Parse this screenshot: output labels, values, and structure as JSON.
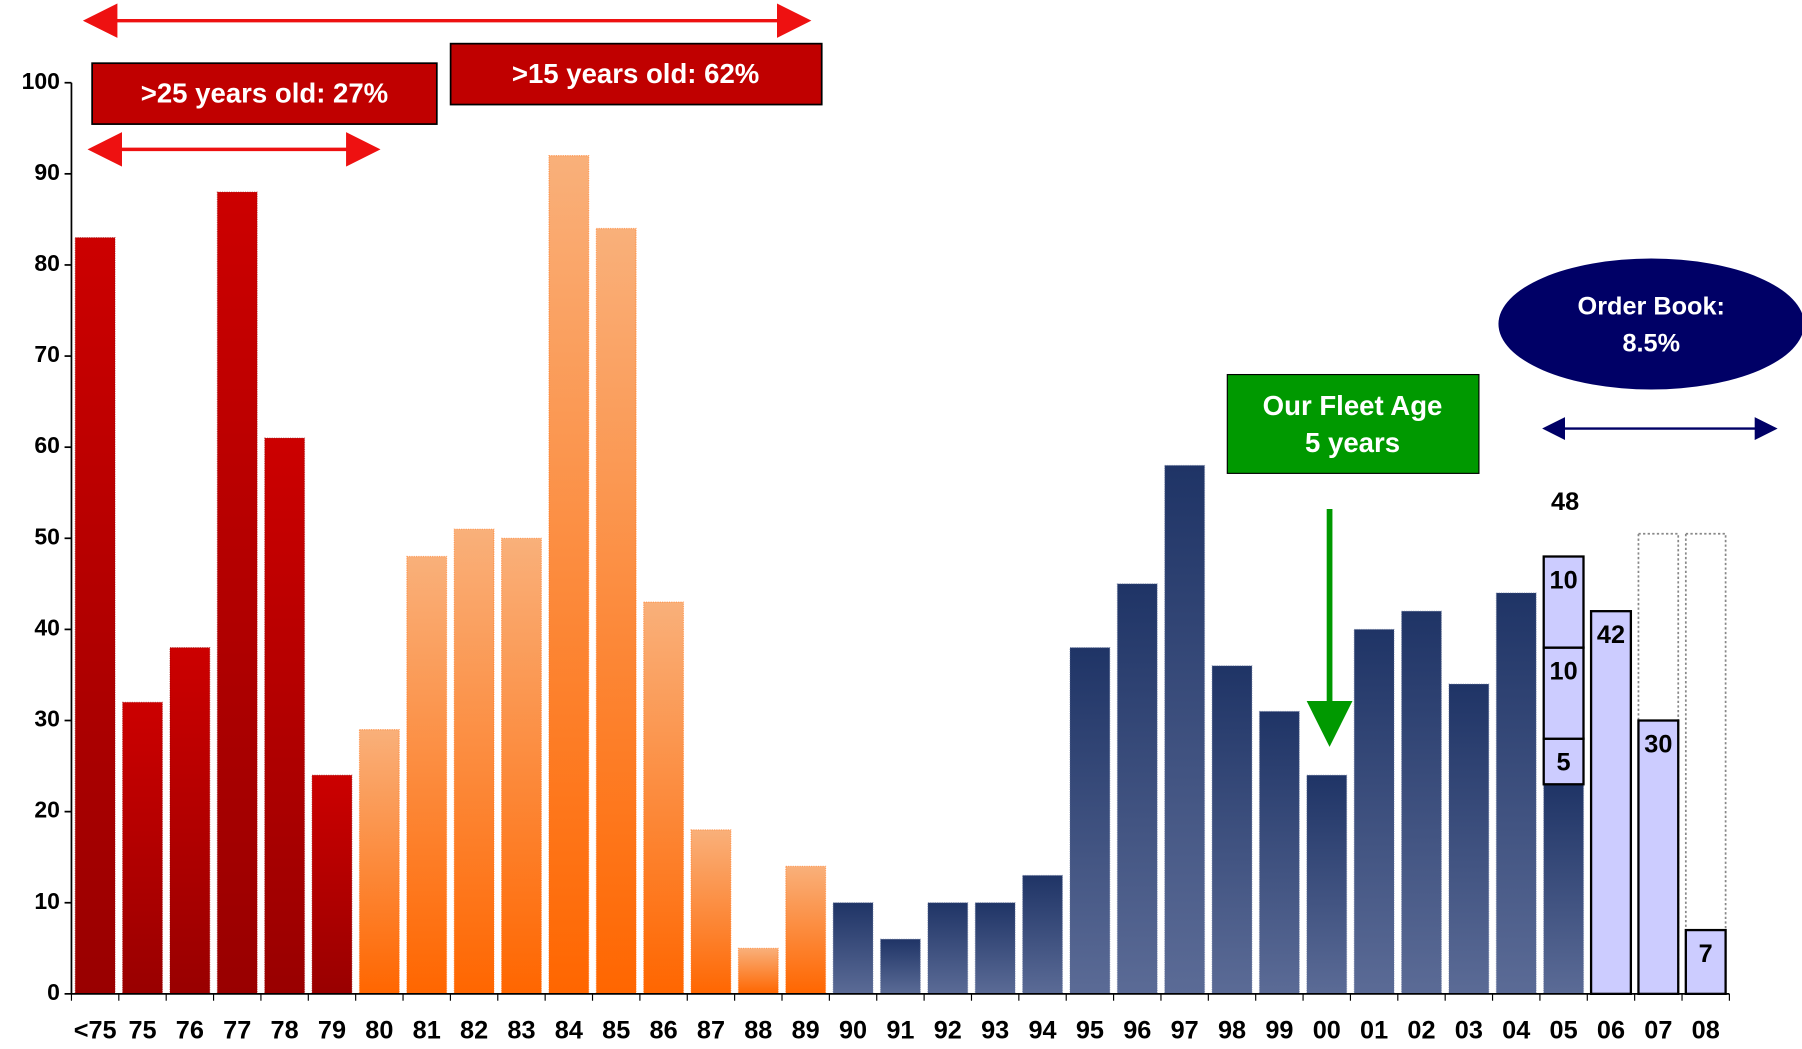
{
  "chart_data": {
    "type": "bar",
    "categories": [
      "<75",
      "75",
      "76",
      "77",
      "78",
      "79",
      "80",
      "81",
      "82",
      "83",
      "84",
      "85",
      "86",
      "87",
      "88",
      "89",
      "90",
      "91",
      "92",
      "93",
      "94",
      "95",
      "96",
      "97",
      "98",
      "99",
      "00",
      "01",
      "02",
      "03",
      "04",
      "05",
      "06",
      "07",
      "08"
    ],
    "series": [
      {
        "color": "#ffffff",
        "color2": "#ffffff",
        "overlay": true,
        "dashed": true,
        "values": [
          null,
          null,
          null,
          null,
          null,
          null,
          null,
          null,
          null,
          null,
          null,
          null,
          null,
          null,
          null,
          null,
          null,
          null,
          null,
          null,
          null,
          null,
          null,
          null,
          null,
          null,
          null,
          null,
          null,
          null,
          null,
          null,
          null,
          50.5,
          50.5
        ]
      },
      {
        "color": "#cc0000",
        "color2": "#990000",
        "values": [
          83,
          32,
          38,
          88,
          61,
          24,
          null,
          null,
          null,
          null,
          null,
          null,
          null,
          null,
          null,
          null,
          null,
          null,
          null,
          null,
          null,
          null,
          null,
          null,
          null,
          null,
          null,
          null,
          null,
          null,
          null,
          null,
          null,
          null,
          null
        ]
      },
      {
        "color": "#f9b07a",
        "color2": "#ff6600",
        "values": [
          null,
          null,
          null,
          null,
          null,
          null,
          29,
          48,
          51,
          50,
          92,
          84,
          43,
          18,
          5,
          14,
          null,
          null,
          null,
          null,
          null,
          null,
          null,
          null,
          null,
          null,
          null,
          null,
          null,
          null,
          null,
          null,
          null,
          null,
          null
        ]
      },
      {
        "color": "#1f3466",
        "color2": "#5b6b96",
        "values": [
          null,
          null,
          null,
          null,
          null,
          null,
          null,
          null,
          null,
          null,
          null,
          null,
          null,
          null,
          null,
          null,
          10,
          6,
          10,
          10,
          13,
          38,
          45,
          58,
          36,
          31,
          24,
          40,
          42,
          34,
          44,
          23,
          null,
          null,
          null
        ]
      },
      {
        "color": "#ccccff",
        "color2": "#ccccff",
        "outlined": true,
        "show_values": true,
        "values": [
          null,
          null,
          null,
          null,
          null,
          null,
          null,
          null,
          null,
          null,
          null,
          null,
          null,
          null,
          null,
          null,
          null,
          null,
          null,
          null,
          null,
          null,
          null,
          null,
          null,
          null,
          null,
          null,
          null,
          null,
          null,
          5,
          42,
          30,
          7
        ]
      },
      {
        "color": "#ccccff",
        "color2": "#ccccff",
        "outlined": true,
        "show_values": true,
        "values": [
          null,
          null,
          null,
          null,
          null,
          null,
          null,
          null,
          null,
          null,
          null,
          null,
          null,
          null,
          null,
          null,
          null,
          null,
          null,
          null,
          null,
          null,
          null,
          null,
          null,
          null,
          null,
          null,
          null,
          null,
          null,
          10,
          null,
          null,
          null
        ]
      },
      {
        "color": "#ccccff",
        "color2": "#ccccff",
        "outlined": true,
        "show_values": true,
        "values": [
          null,
          null,
          null,
          null,
          null,
          null,
          null,
          null,
          null,
          null,
          null,
          null,
          null,
          null,
          null,
          null,
          null,
          null,
          null,
          null,
          null,
          null,
          null,
          null,
          null,
          null,
          null,
          null,
          null,
          null,
          null,
          10,
          null,
          null,
          null
        ]
      }
    ],
    "ylim": [
      0,
      100
    ],
    "yticks": [
      0,
      10,
      20,
      30,
      40,
      50,
      60,
      70,
      80,
      90,
      100
    ],
    "annotations": {
      "old25": ">25 years old: 27%",
      "old15": ">15 years old: 62%",
      "fleet_line1": "Our Fleet Age",
      "fleet_line2": "5 years",
      "book_line1": "Order Book:",
      "book_line2": "8.5%",
      "total_05": "48"
    }
  }
}
